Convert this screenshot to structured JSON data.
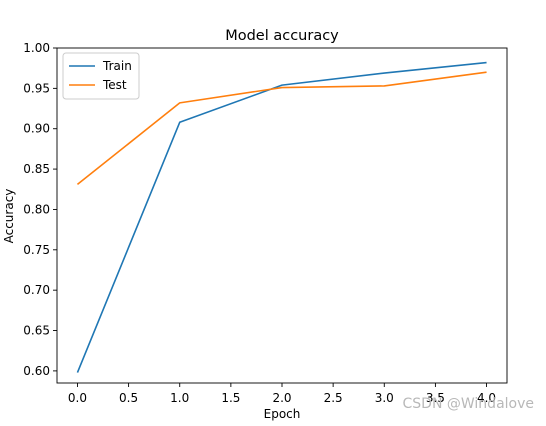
{
  "chart_data": {
    "type": "line",
    "title": "Model accuracy",
    "xlabel": "Epoch",
    "ylabel": "Accuracy",
    "xlim": [
      -0.2,
      4.2
    ],
    "ylim": [
      0.585,
      1.0
    ],
    "xticks": [
      0.0,
      0.5,
      1.0,
      1.5,
      2.0,
      2.5,
      3.0,
      3.5,
      4.0
    ],
    "xtick_labels": [
      "0.0",
      "0.5",
      "1.0",
      "1.5",
      "2.0",
      "2.5",
      "3.0",
      "3.5",
      "4.0"
    ],
    "yticks": [
      0.6,
      0.65,
      0.7,
      0.75,
      0.8,
      0.85,
      0.9,
      0.95,
      1.0
    ],
    "ytick_labels": [
      "0.60",
      "0.65",
      "0.70",
      "0.75",
      "0.80",
      "0.85",
      "0.90",
      "0.95",
      "1.00"
    ],
    "x": [
      0,
      1,
      2,
      3,
      4
    ],
    "series": [
      {
        "name": "Train",
        "color": "#1f77b4",
        "values": [
          0.598,
          0.908,
          0.954,
          0.969,
          0.982
        ]
      },
      {
        "name": "Test",
        "color": "#ff7f0e",
        "values": [
          0.831,
          0.932,
          0.951,
          0.953,
          0.97
        ]
      }
    ],
    "grid": false,
    "legend": "upper-left"
  },
  "watermark": "CSDN @Windalove"
}
